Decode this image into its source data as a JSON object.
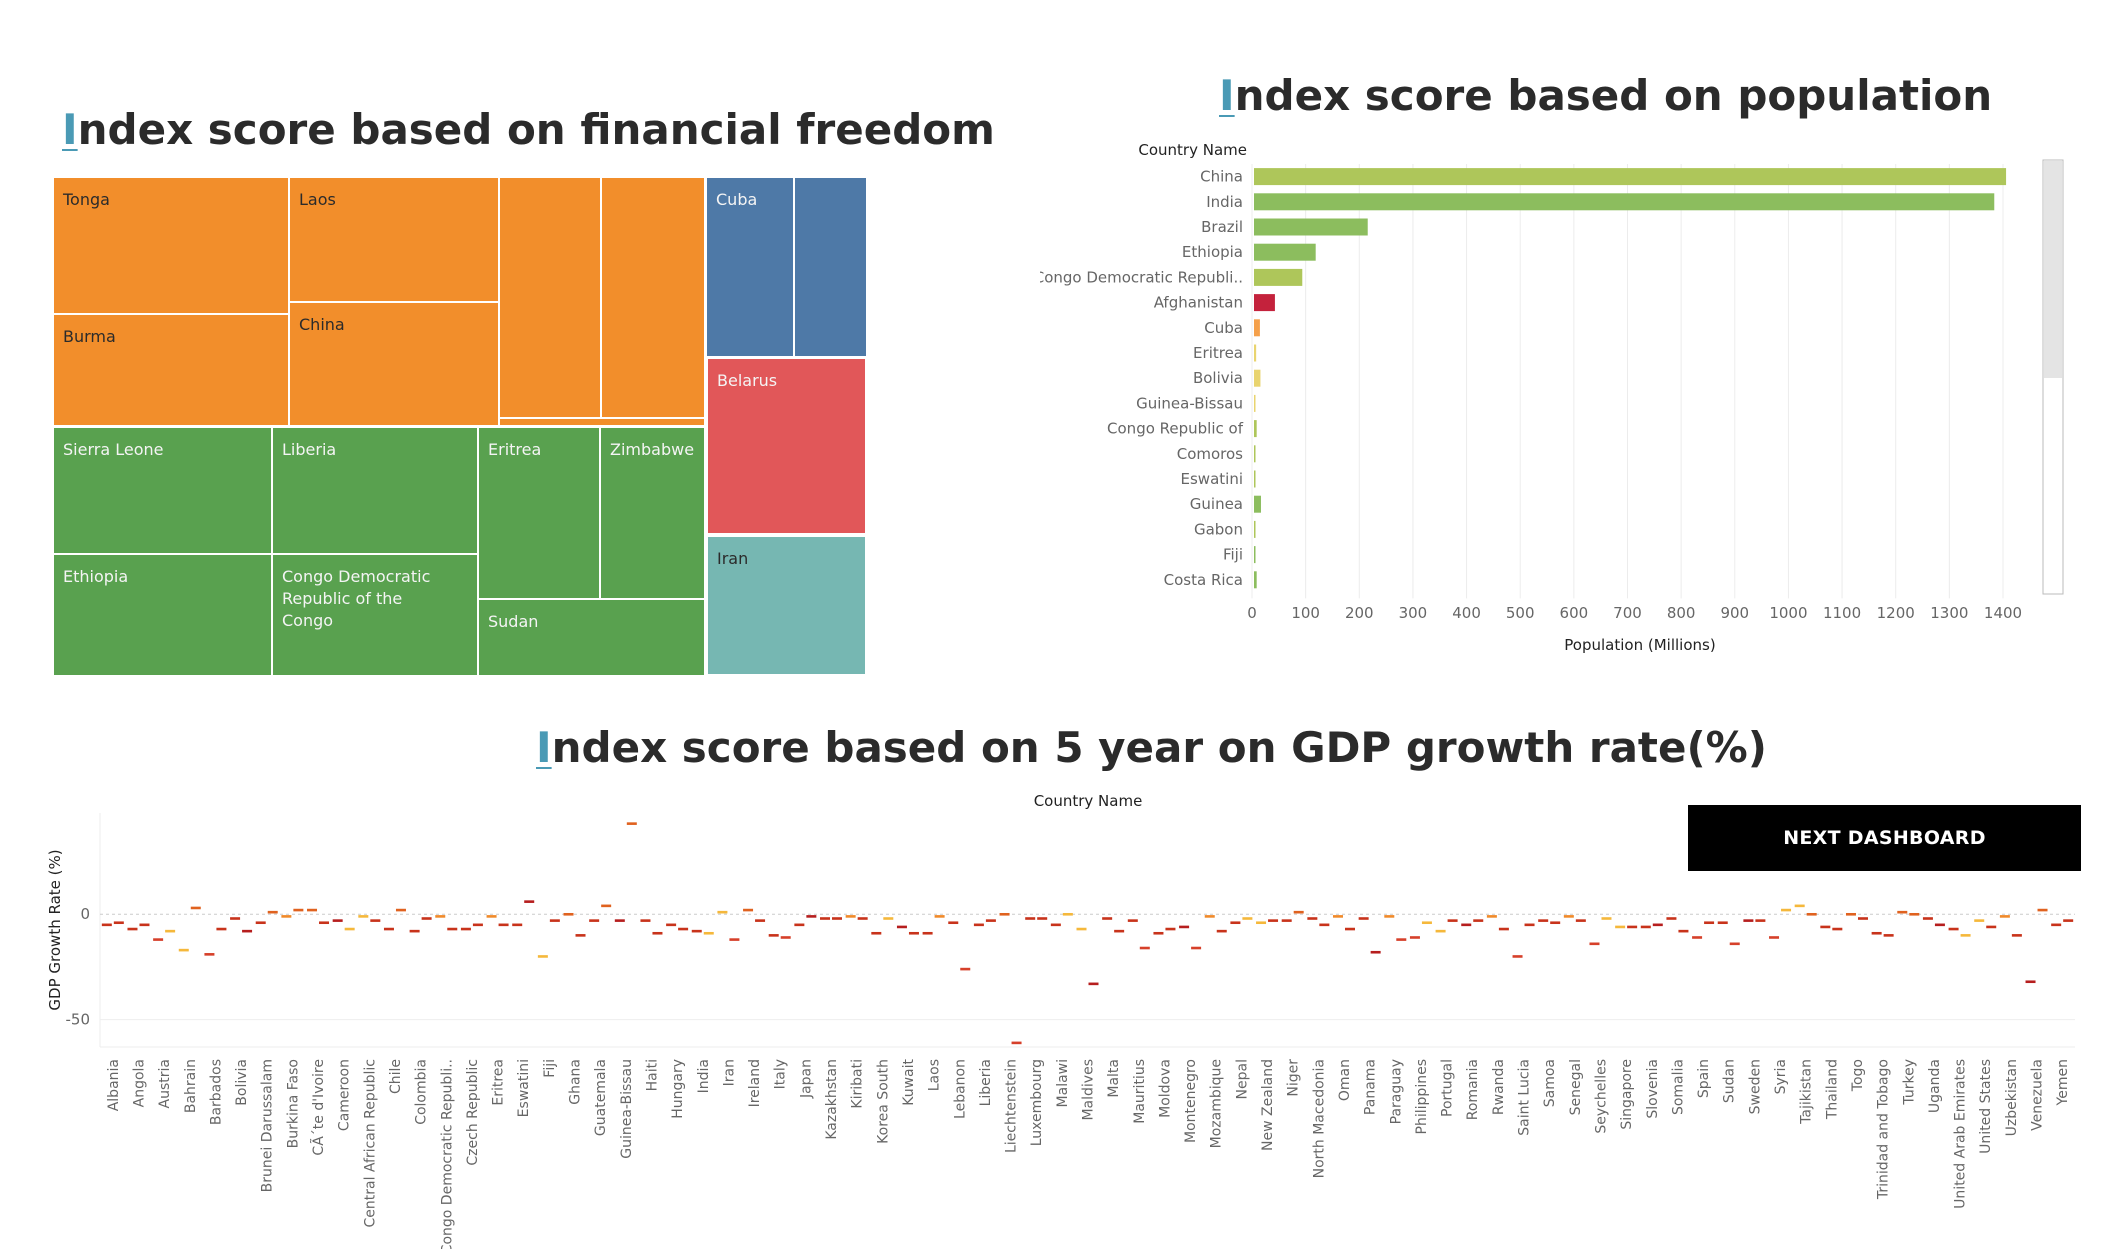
{
  "titles": {
    "treemap": {
      "first": "I",
      "rest": "ndex score based on financial freedom"
    },
    "population": {
      "first": "I",
      "rest": "ndex score based on population"
    },
    "gdp": {
      "first": "I",
      "rest": "ndex score based on 5 year on GDP growth rate(%)"
    }
  },
  "next_button": "NEXT DASHBOARD",
  "colors": {
    "orange": "#f28e2b",
    "blue": "#4e79a7",
    "red": "#e15759",
    "teal": "#76b7b2",
    "green": "#59a14f",
    "bar_light_green": "#aec65a",
    "bar_green": "#8cbd5e",
    "bar_red": "#c4223c",
    "bar_orange": "#f5a04a",
    "bar_yellow": "#e9d46f"
  },
  "chart_data": [
    {
      "type": "treemap",
      "title": "Index score based on financial freedom",
      "tiles": [
        {
          "label": "Tonga",
          "color": "orange"
        },
        {
          "label": "Laos",
          "color": "orange"
        },
        {
          "label": "",
          "color": "orange"
        },
        {
          "label": "",
          "color": "orange"
        },
        {
          "label": "Burma",
          "color": "orange"
        },
        {
          "label": "China",
          "color": "orange"
        },
        {
          "label": "",
          "color": "orange"
        },
        {
          "label": "",
          "color": "orange"
        },
        {
          "label": "Cuba",
          "color": "blue"
        },
        {
          "label": "",
          "color": "blue"
        },
        {
          "label": "Belarus",
          "color": "red"
        },
        {
          "label": "Iran",
          "color": "teal"
        },
        {
          "label": "Sierra Leone",
          "color": "green"
        },
        {
          "label": "Liberia",
          "color": "green"
        },
        {
          "label": "Eritrea",
          "color": "green"
        },
        {
          "label": "Zimbabwe",
          "color": "green"
        },
        {
          "label": "Ethiopia",
          "color": "green"
        },
        {
          "label": "Congo Democratic Republic of the Congo",
          "color": "green"
        },
        {
          "label": "Sudan",
          "color": "green"
        }
      ]
    },
    {
      "type": "bar",
      "orientation": "horizontal",
      "title": "Index score based on population",
      "ylabel": "Country Name",
      "xlabel": "Population (Millions)",
      "xlim": [
        0,
        1400
      ],
      "xticks": [
        "0",
        "100",
        "200",
        "300",
        "400",
        "500",
        "600",
        "700",
        "800",
        "900",
        "1000",
        "1100",
        "1200",
        "1300",
        "1400"
      ],
      "categories": [
        "China",
        "India",
        "Brazil",
        "Ethiopia",
        "Congo Democratic Republi..",
        "Afghanistan",
        "Cuba",
        "Eritrea",
        "Bolivia",
        "Guinea-Bissau",
        "Congo Republic of",
        "Comoros",
        "Eswatini",
        "Guinea",
        "Gabon",
        "Fiji",
        "Costa Rica"
      ],
      "values": [
        1402,
        1380,
        212,
        115,
        90,
        39,
        11,
        4,
        12,
        2,
        5,
        1,
        1,
        13,
        2,
        1,
        5
      ],
      "bar_colors": [
        "bar_light_green",
        "bar_green",
        "bar_green",
        "bar_green",
        "bar_light_green",
        "bar_red",
        "bar_orange",
        "bar_yellow",
        "bar_yellow",
        "bar_yellow",
        "bar_light_green",
        "bar_light_green",
        "bar_light_green",
        "bar_green",
        "bar_light_green",
        "bar_green",
        "bar_green"
      ]
    },
    {
      "type": "scatter",
      "title": "Index score based on 5 year on GDP growth rate(%)",
      "header": "Country Name",
      "ylabel": "GDP Growth Rate (%)",
      "yticks": [
        "0",
        "-50"
      ],
      "ylim": [
        -63,
        48
      ],
      "x": [
        "Albania",
        "Angola",
        "Austria",
        "Bahrain",
        "Barbados",
        "Bolivia",
        "Brunei Darussalam",
        "Burkina Faso",
        "CÃ´te d'Ivoire",
        "Cameroon",
        "Central African Republic",
        "Chile",
        "Colombia",
        "Congo Democratic Republi..",
        "Czech Republic",
        "Eritrea",
        "Eswatini",
        "Fiji",
        "Ghana",
        "Guatemala",
        "Guinea-Bissau",
        "Haiti",
        "Hungary",
        "India",
        "Iran",
        "Ireland",
        "Italy",
        "Japan",
        "Kazakhstan",
        "Kiribati",
        "Korea South",
        "Kuwait",
        "Laos",
        "Lebanon",
        "Liberia",
        "Liechtenstein",
        "Luxembourg",
        "Malawi",
        "Maldives",
        "Malta",
        "Mauritius",
        "Moldova",
        "Montenegro",
        "Mozambique",
        "Nepal",
        "New Zealand",
        "Niger",
        "North Macedonia",
        "Oman",
        "Panama",
        "Paraguay",
        "Philippines",
        "Portugal",
        "Romania",
        "Rwanda",
        "Saint Lucia",
        "Samoa",
        "Senegal",
        "Seychelles",
        "Singapore",
        "Slovenia",
        "Somalia",
        "Spain",
        "Sudan",
        "Sweden",
        "Syria",
        "Tajikistan",
        "Thailand",
        "Togo",
        "Trinidad and Tobago",
        "Turkey",
        "Uganda",
        "United Arab Emirates",
        "United States",
        "Uzbekistan",
        "Venezuela",
        "Yemen"
      ],
      "values": [
        [
          -5,
          -4
        ],
        [
          -7,
          -5
        ],
        [
          -12,
          -8
        ],
        [
          -17,
          3
        ],
        [
          -19,
          -7
        ],
        [
          -2,
          -8
        ],
        [
          -4,
          1
        ],
        [
          -1,
          2
        ],
        [
          2,
          -4
        ],
        [
          -3,
          -7
        ],
        [
          -1,
          -3
        ],
        [
          -7,
          2
        ],
        [
          -8,
          -2
        ],
        [
          -1,
          -7
        ],
        [
          -7,
          -5
        ],
        [
          -1,
          -5
        ],
        [
          -5,
          6
        ],
        [
          -20,
          -3
        ],
        [
          0,
          -10
        ],
        [
          -3,
          4
        ],
        [
          -3,
          43
        ],
        [
          -3,
          -9
        ],
        [
          -5,
          -7
        ],
        [
          -8,
          -9
        ],
        [
          1,
          -12
        ],
        [
          2,
          -3
        ],
        [
          -10,
          -11
        ],
        [
          -5,
          -1
        ],
        [
          -2,
          -2
        ],
        [
          -1,
          -2
        ],
        [
          -9,
          -2
        ],
        [
          -6,
          -9
        ],
        [
          -9,
          -1
        ],
        [
          -4,
          -26
        ],
        [
          -5,
          -3
        ],
        [
          0,
          -61
        ],
        [
          -2,
          -2
        ],
        [
          -5,
          0
        ],
        [
          -7,
          -33
        ],
        [
          -2,
          -8
        ],
        [
          -3,
          -16
        ],
        [
          -9,
          -7
        ],
        [
          -6,
          -16
        ],
        [
          -1,
          -8
        ],
        [
          -4,
          -2
        ],
        [
          -4,
          -3
        ],
        [
          -3,
          1
        ],
        [
          -2,
          -5
        ],
        [
          -1,
          -7
        ],
        [
          -2,
          -18
        ],
        [
          -1,
          -12
        ],
        [
          -11,
          -4
        ],
        [
          -8,
          -3
        ],
        [
          -5,
          -3
        ],
        [
          -1,
          -7
        ],
        [
          -20,
          -5
        ],
        [
          -3,
          -4
        ],
        [
          -1,
          -3
        ],
        [
          -14,
          -2
        ],
        [
          -6,
          -6
        ],
        [
          -6,
          -5
        ],
        [
          -2,
          -8
        ],
        [
          -11,
          -4
        ],
        [
          -4,
          -14
        ],
        [
          -3,
          -3
        ],
        [
          -11,
          2
        ],
        [
          4,
          0
        ],
        [
          -6,
          -7
        ],
        [
          0,
          -2
        ],
        [
          -9,
          -10
        ],
        [
          1,
          0
        ],
        [
          -2,
          -5
        ],
        [
          -7,
          -10
        ],
        [
          -3,
          -6
        ],
        [
          -1,
          -10
        ],
        [
          -32,
          2
        ],
        [
          -5,
          -3
        ]
      ]
    }
  ]
}
